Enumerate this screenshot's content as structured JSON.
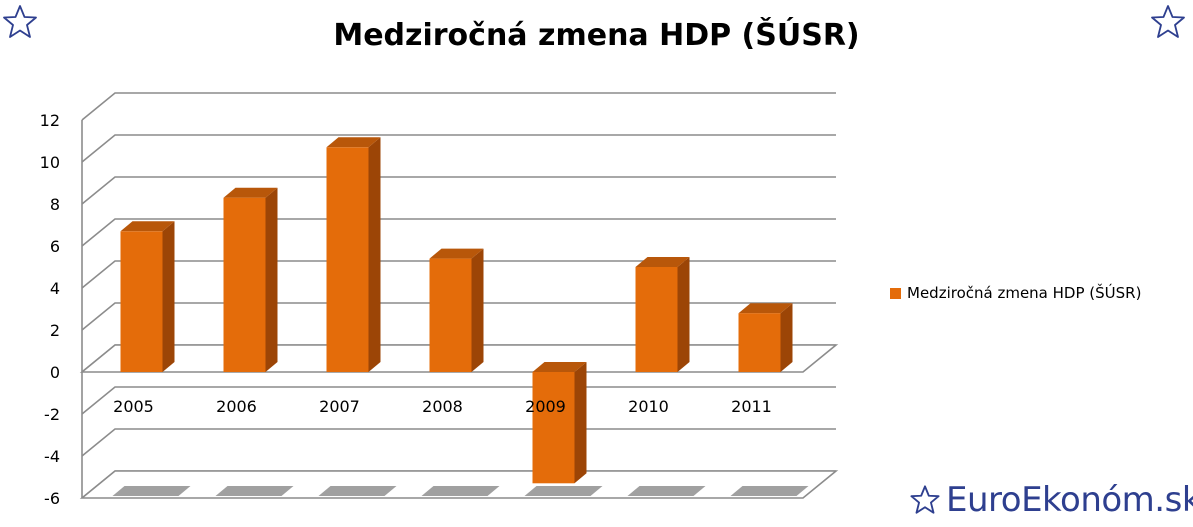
{
  "chart_data": {
    "type": "bar",
    "title": "Medziročná zmena HDP (ŠÚSR)",
    "categories": [
      "2005",
      "2006",
      "2007",
      "2008",
      "2009",
      "2010",
      "2011"
    ],
    "series": [
      {
        "name": "Medziročná zmena HDP (ŠÚSR)",
        "values": [
          6.7,
          8.3,
          10.7,
          5.4,
          -5.3,
          5.0,
          2.8
        ],
        "color": "#e46c0a"
      }
    ],
    "yticks": [
      "12",
      "10",
      "8",
      "6",
      "4",
      "2",
      "0",
      "-2",
      "-4",
      "-6"
    ],
    "ylim": [
      -6,
      12
    ],
    "grid": true,
    "legend_position": "right",
    "xlabel": "",
    "ylabel": ""
  },
  "branding": {
    "logo_text": "EuroEkonóm.sk",
    "logo_color": "#2e3f8f",
    "star_icon": "star-outline-icon"
  }
}
